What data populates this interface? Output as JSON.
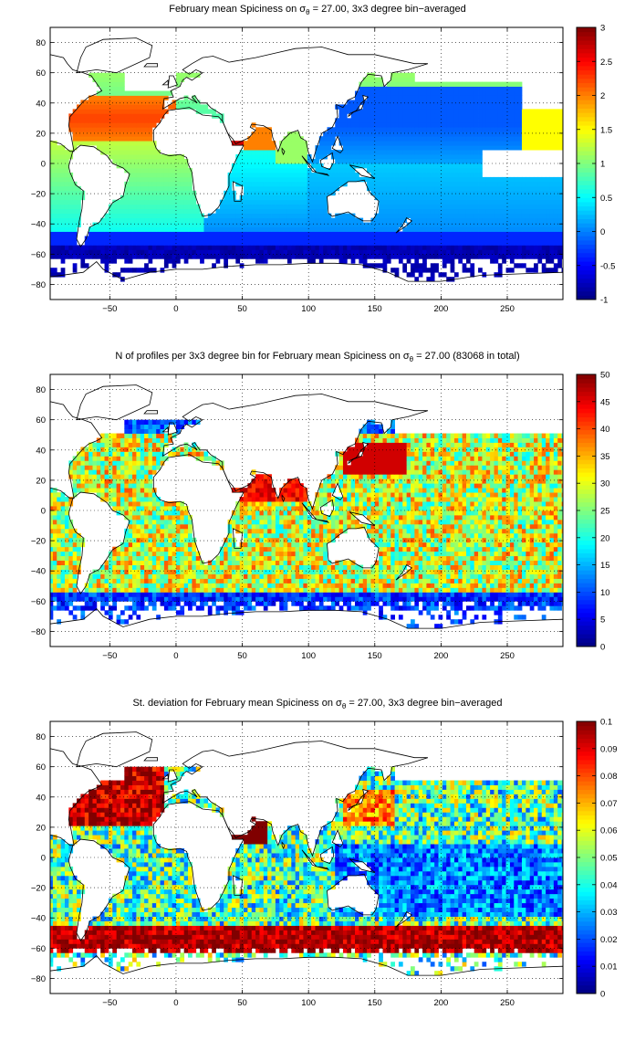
{
  "chart_data": [
    {
      "type": "heatmap",
      "title": "February mean Spiciness on σ",
      "title_sub": "θ",
      "title_rest": " = 27.00, 3x3 degree bin−averaged",
      "xlim": [
        -95,
        292
      ],
      "ylim": [
        -90,
        90
      ],
      "x_ticks": [
        -50,
        0,
        50,
        100,
        150,
        200,
        250
      ],
      "y_ticks": [
        -80,
        -60,
        -40,
        -20,
        0,
        20,
        40,
        60,
        80
      ],
      "colorbar": {
        "min": -1,
        "max": 3,
        "ticks": [
          "-1",
          "-0.5",
          "0",
          "0.5",
          "1",
          "1.5",
          "2",
          "2.5",
          "3"
        ]
      },
      "grid": true,
      "field": "spice"
    },
    {
      "type": "heatmap",
      "title": "N of profiles per 3x3 degree bin for February mean Spiciness on σ",
      "title_sub": "θ",
      "title_rest": " = 27.00 (83068 in total)",
      "xlim": [
        -95,
        292
      ],
      "ylim": [
        -90,
        90
      ],
      "x_ticks": [
        -50,
        0,
        50,
        100,
        150,
        200,
        250
      ],
      "y_ticks": [
        -80,
        -60,
        -40,
        -20,
        0,
        20,
        40,
        60,
        80
      ],
      "colorbar": {
        "min": 0,
        "max": 50,
        "ticks": [
          "0",
          "5",
          "10",
          "15",
          "20",
          "25",
          "30",
          "35",
          "40",
          "45",
          "50"
        ]
      },
      "grid": true,
      "field": "count"
    },
    {
      "type": "heatmap",
      "title": "St. deviation for February mean Spiciness on σ",
      "title_sub": "θ",
      "title_rest": " = 27.00, 3x3 degree bin−averaged",
      "xlim": [
        -95,
        292
      ],
      "ylim": [
        -90,
        90
      ],
      "x_ticks": [
        -50,
        0,
        50,
        100,
        150,
        200,
        250
      ],
      "y_ticks": [
        -80,
        -60,
        -40,
        -20,
        0,
        20,
        40,
        60,
        80
      ],
      "colorbar": {
        "min": 0,
        "max": 0.1,
        "ticks": [
          "0",
          "0.01",
          "0.02",
          "0.03",
          "0.04",
          "0.05",
          "0.06",
          "0.07",
          "0.08",
          "0.09",
          "0.1"
        ]
      },
      "grid": true,
      "field": "std"
    }
  ]
}
